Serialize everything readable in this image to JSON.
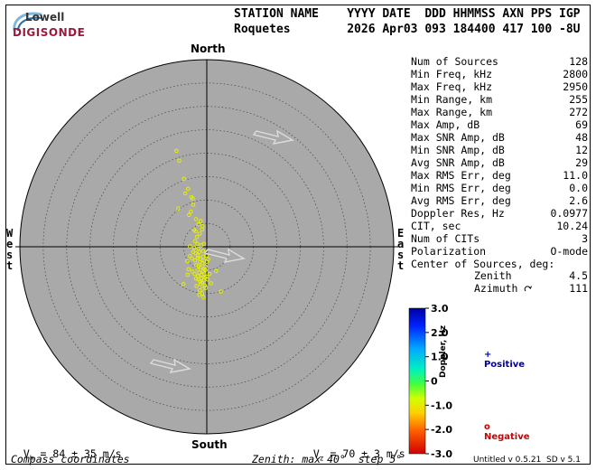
{
  "logo": {
    "top": "Lowell",
    "bottom": "DIGISONDE"
  },
  "header": {
    "line1": "STATION NAME    YYYY DATE  DDD HHMMSS AXN PPS IGP",
    "line2": "Roquetes        2026 Apr03 093 184400 417 100 -8U"
  },
  "compass": {
    "north": "North",
    "south": "South",
    "west": "West",
    "east": "East"
  },
  "stats": [
    {
      "label": "Num of Sources",
      "value": "128"
    },
    {
      "label": "Min Freq, kHz",
      "value": "2800"
    },
    {
      "label": "Max Freq, kHz",
      "value": "2950"
    },
    {
      "label": "Min Range, km",
      "value": "255"
    },
    {
      "label": "Max Range, km",
      "value": "272"
    },
    {
      "label": "Max Amp, dB",
      "value": "69"
    },
    {
      "label": "Max SNR Amp, dB",
      "value": "48"
    },
    {
      "label": "Min SNR Amp, dB",
      "value": "12"
    },
    {
      "label": "Avg SNR Amp, dB",
      "value": "29"
    },
    {
      "label": "Max RMS Err, deg",
      "value": "11.0"
    },
    {
      "label": "Min RMS Err, deg",
      "value": "0.0"
    },
    {
      "label": "Avg RMS Err, deg",
      "value": "2.6"
    },
    {
      "label": "Doppler Res, Hz",
      "value": "0.0977"
    },
    {
      "label": "CIT, sec",
      "value": "10.24"
    },
    {
      "label": "Num of CITs",
      "value": "3"
    },
    {
      "label": "Polarization",
      "value": "O-mode"
    }
  ],
  "center_label": "Center of Sources, deg:",
  "zenith": {
    "label": "Zenith",
    "value": "4.5"
  },
  "azimuth": {
    "label": "Azimuth",
    "value": "111"
  },
  "colorbar": {
    "title": "Doppler, Hz",
    "ticks": [
      "3.0",
      "2.0",
      "1.0",
      "0",
      "-1.0",
      "-2.0",
      "-3.0"
    ],
    "range": [
      -3.0,
      3.0
    ]
  },
  "legend": {
    "positive": {
      "symbol": "+",
      "label": "Positive",
      "color": "#0000aa"
    },
    "negative": {
      "symbol": "o",
      "label": "Negative",
      "color": "#cc0000"
    }
  },
  "footer": {
    "vh": "V",
    "vh_sub": "h",
    "vh_text": " = 84 ± 35 m/s",
    "vz": "V",
    "vz_sub": "z",
    "vz_text": " = 70 ± 3 m/s",
    "compass_coords": "Compass coordinates",
    "zenith_info": "Zenith: max 40°  step 5°",
    "version": "Untitled v 0.5.21  SD v 5.1"
  },
  "chart_data": {
    "type": "scatter",
    "coordinate_system": "polar skymap, zenith max 40 deg, step 5 deg",
    "zenith_max": 40,
    "zenith_step": 5,
    "point_color": "#e6f000",
    "background_color": "#a9a9a9",
    "points_xy_deg": [
      [
        -6.5,
        20.5
      ],
      [
        -5.9,
        18.4
      ],
      [
        -4.9,
        14.5
      ],
      [
        -4.0,
        12.4
      ],
      [
        -4.6,
        11.4
      ],
      [
        -3.3,
        10.6
      ],
      [
        -3.0,
        10.3
      ],
      [
        -6.1,
        8.2
      ],
      [
        -3.4,
        7.5
      ],
      [
        -2.3,
        5.9
      ],
      [
        -1.8,
        4.8
      ],
      [
        -0.9,
        4.4
      ],
      [
        -1.0,
        3.7
      ],
      [
        -2.4,
        3.3
      ],
      [
        -1.5,
        2.8
      ],
      [
        -2.5,
        1.2
      ],
      [
        -0.6,
        0.6
      ],
      [
        -3.6,
        0.1
      ],
      [
        -2.7,
        -0.2
      ],
      [
        -1.8,
        -0.4
      ],
      [
        -0.8,
        -0.9
      ],
      [
        -1.6,
        -1.1
      ],
      [
        -2.4,
        -1.4
      ],
      [
        -1.9,
        -1.9
      ],
      [
        -0.8,
        -2.1
      ],
      [
        -3.6,
        -2.0
      ],
      [
        -1.4,
        -2.6
      ],
      [
        0.3,
        -2.7
      ],
      [
        -2.5,
        -2.9
      ],
      [
        -4.2,
        -3.1
      ],
      [
        -1.5,
        -3.3
      ],
      [
        -0.9,
        -3.5
      ],
      [
        0.0,
        -3.2
      ],
      [
        -2.3,
        -3.9
      ],
      [
        -1.3,
        -4.4
      ],
      [
        -0.3,
        -4.2
      ],
      [
        -2.0,
        -4.9
      ],
      [
        -0.8,
        -5.2
      ],
      [
        -1.6,
        -5.5
      ],
      [
        -0.5,
        -5.8
      ],
      [
        -3.9,
        -4.8
      ],
      [
        -1.1,
        -6.0
      ],
      [
        -1.9,
        -6.3
      ],
      [
        -0.1,
        -6.4
      ],
      [
        -1.2,
        -6.8
      ],
      [
        -0.6,
        -7.2
      ],
      [
        -1.8,
        -7.0
      ],
      [
        -4.1,
        -6.0
      ],
      [
        -1.0,
        -7.6
      ],
      [
        0.2,
        -7.0
      ],
      [
        0.6,
        -5.8
      ],
      [
        -1.3,
        -8.0
      ],
      [
        -0.4,
        -8.3
      ],
      [
        -0.9,
        -9.0
      ],
      [
        -2.2,
        -8.4
      ],
      [
        -1.5,
        -9.3
      ],
      [
        2.0,
        -5.2
      ],
      [
        -2.6,
        -5.8
      ],
      [
        -0.3,
        -5.0
      ],
      [
        -1.7,
        -4.2
      ],
      [
        -0.6,
        -3.0
      ],
      [
        -2.9,
        -1.1
      ],
      [
        -1.2,
        0.3
      ],
      [
        -2.1,
        2.1
      ],
      [
        -0.4,
        -6.6
      ],
      [
        -1.4,
        -7.4
      ],
      [
        -2.3,
        -6.8
      ],
      [
        -3.1,
        -5.3
      ],
      [
        0.9,
        -7.8
      ],
      [
        -0.2,
        -8.8
      ],
      [
        -1.0,
        -10.0
      ],
      [
        -0.7,
        -10.8
      ],
      [
        -1.6,
        -10.3
      ],
      [
        -1.9,
        -2.4
      ],
      [
        -3.2,
        -2.5
      ],
      [
        -0.5,
        -4.8
      ],
      [
        3.0,
        -9.6
      ],
      [
        -5.0,
        -8.0
      ],
      [
        -0.1,
        -1.9
      ],
      [
        -2.0,
        0.6
      ],
      [
        -2.7,
        3.6
      ],
      [
        -1.3,
        5.5
      ],
      [
        -3.8,
        6.8
      ],
      [
        -2.9,
        9.0
      ]
    ]
  }
}
